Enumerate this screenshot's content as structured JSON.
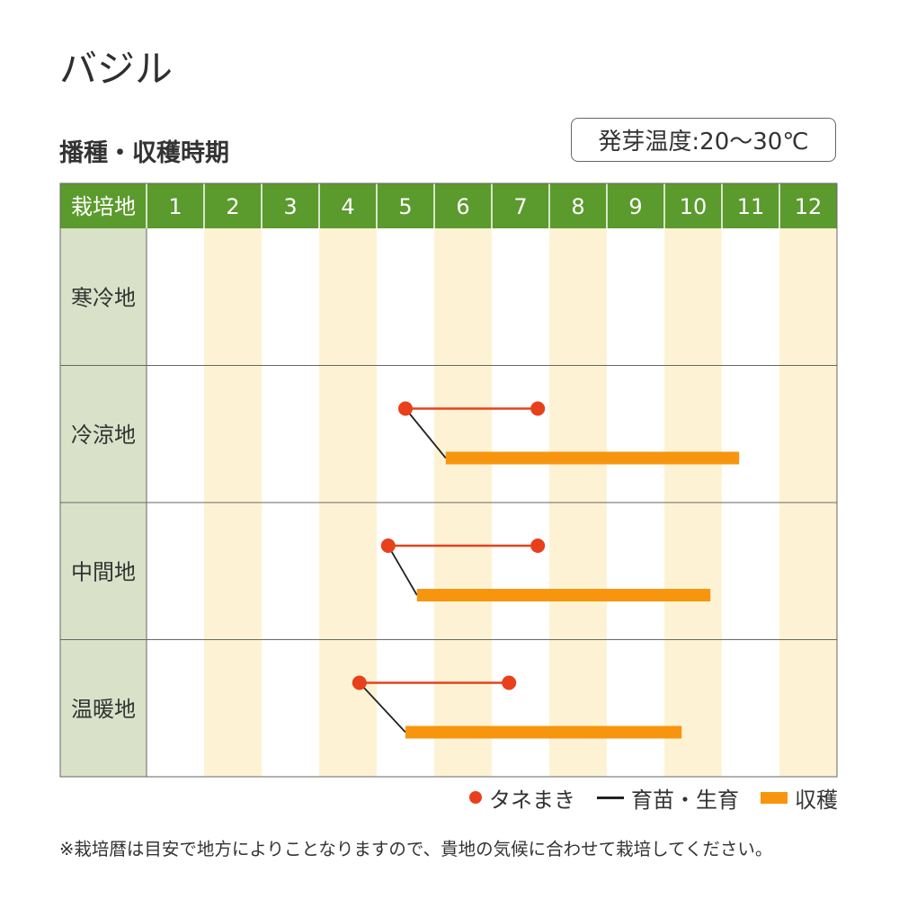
{
  "title": "バジル",
  "subtitle": "播種・収穫時期",
  "temp": "発芽温度:20～30℃",
  "legend": {
    "sowing": "タネまき",
    "seedling": "育苗・生育",
    "harvest": "収穫"
  },
  "note": "※栽培暦は目安で地方によりことなりますので、貴地の気候に合わせて栽培してください。",
  "colors": {
    "header": "#5b9a2c",
    "label_bg": "#d9e2c8",
    "stripe": "#fdf3d4",
    "sowing": "#e8401d",
    "seedling": "#222222",
    "harvest": "#f7950f",
    "border": "#666666"
  },
  "chart_data": {
    "type": "gantt",
    "header_label": "栽培地",
    "months": [
      "1",
      "2",
      "3",
      "4",
      "5",
      "6",
      "7",
      "8",
      "9",
      "10",
      "11",
      "12"
    ],
    "regions": [
      {
        "name": "寒冷地"
      },
      {
        "name": "冷涼地",
        "sowing": [
          5.5,
          7.8
        ],
        "harvest": [
          6.2,
          11.3
        ]
      },
      {
        "name": "中間地",
        "sowing": [
          5.2,
          7.8
        ],
        "harvest": [
          5.7,
          10.8
        ]
      },
      {
        "name": "温暖地",
        "sowing": [
          4.7,
          7.3
        ],
        "harvest": [
          5.5,
          10.3
        ]
      }
    ]
  }
}
